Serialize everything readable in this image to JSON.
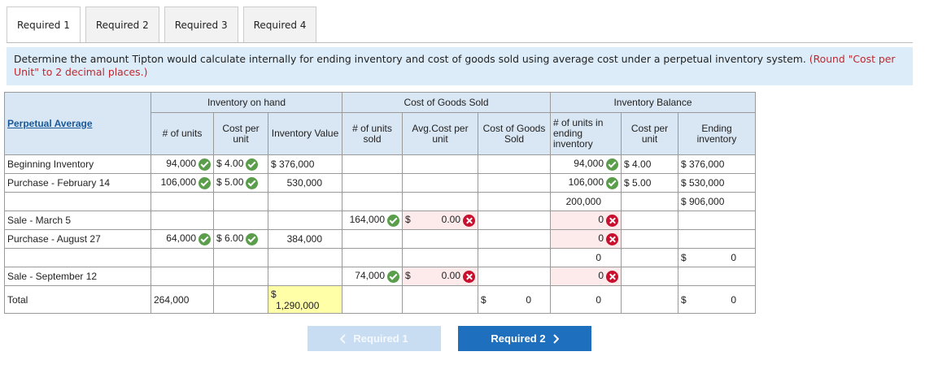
{
  "tabs": [
    "Required 1",
    "Required 2",
    "Required 3",
    "Required 4"
  ],
  "instruction": {
    "text": "Determine the amount Tipton would calculate internally for ending inventory and cost of goods sold using average cost under a perpetual inventory system.",
    "note": "(Round \"Cost per Unit\" to 2 decimal places.)"
  },
  "table": {
    "title": "Perpetual Average",
    "groups": [
      "Inventory on hand",
      "Cost of Goods Sold",
      "Inventory Balance"
    ],
    "columns": [
      "# of units",
      "Cost per unit",
      "Inventory Value",
      "# of units sold",
      "Avg.Cost per unit",
      "Cost of Goods Sold",
      "# of units in ending inventory",
      "Cost per unit",
      "Ending inventory"
    ],
    "rows": [
      {
        "label": "Beginning Inventory",
        "units": "94,000",
        "cost": "$ 4.00",
        "value": "$ 376,000",
        "end_units": "94,000",
        "end_cost": "$ 4.00",
        "end_value": "$ 376,000"
      },
      {
        "label": "Purchase - February 14",
        "units": "106,000",
        "cost": "$ 5.00",
        "value": "530,000",
        "end_units": "106,000",
        "end_cost": "$ 5.00",
        "end_value": "$ 530,000"
      },
      {
        "end_units": "200,000",
        "end_value": "$ 906,000"
      },
      {
        "label": "Sale - March 5",
        "sold": "164,000",
        "avg": [
          "$",
          "0.00"
        ],
        "end_units": "0"
      },
      {
        "label": "Purchase - August 27",
        "units": "64,000",
        "cost": "$ 6.00",
        "value": "384,000",
        "end_units": "0"
      },
      {
        "end_units": "0",
        "end_value": [
          "$",
          "0"
        ]
      },
      {
        "label": "Sale - September 12",
        "sold": "74,000",
        "avg": [
          "$",
          "0.00"
        ],
        "end_units": "0"
      },
      {
        "label": "Total",
        "units": "264,000",
        "value": [
          "$",
          "1,290,000"
        ],
        "cogs": [
          "$",
          "0"
        ],
        "end_units": "0",
        "end_value": [
          "$",
          "0"
        ]
      }
    ]
  },
  "buttons": {
    "previous": "Required 1",
    "next": "Required 2"
  }
}
